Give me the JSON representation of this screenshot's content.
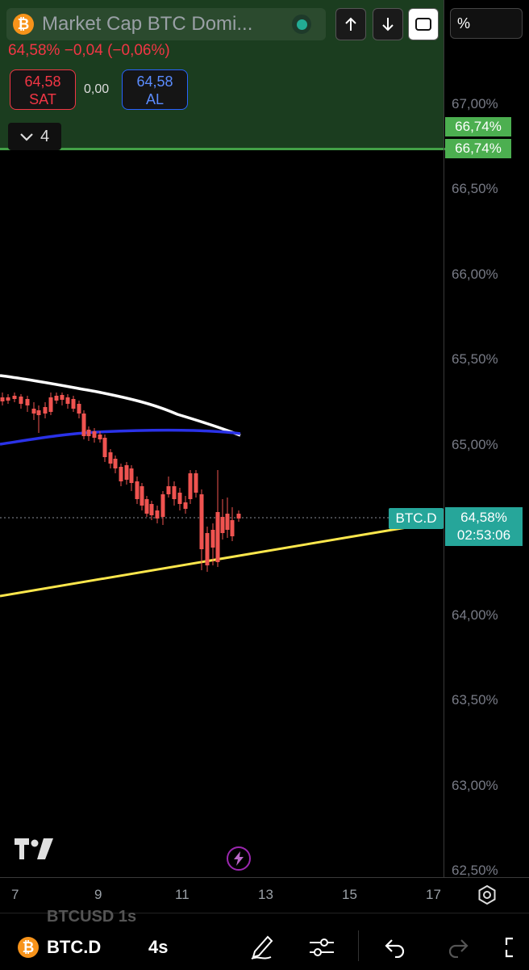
{
  "header": {
    "title": "Market Cap BTC Domi...",
    "price_change": "64,58%  −0,04 (−0,06%)",
    "sell_price": "64,58",
    "sell_label": "SAT",
    "spread": "0,00",
    "buy_price": "64,58",
    "buy_label": "AL",
    "collapse_count": "4",
    "percent_label": "%",
    "logo_letter": "₿"
  },
  "price_axis": {
    "ticks": [
      "67,00%",
      "66,50%",
      "66,00%",
      "65,50%",
      "65,00%",
      "64,00%",
      "63,50%",
      "63,00%",
      "62,50%"
    ],
    "alert_tag_1": "66,74%",
    "alert_tag_2": "66,74%",
    "current_price": "64,58%",
    "countdown": "02:53:06",
    "symbol_tag": "BTC.D"
  },
  "time_axis": {
    "labels": [
      "7",
      "9",
      "11",
      "13",
      "15",
      "17"
    ]
  },
  "toolbar": {
    "ghost_symbol": "BTCUSD  1s",
    "symbol": "BTC.D",
    "timeframe": "4s"
  },
  "colors": {
    "up": "#26a69a",
    "down": "#ef5350",
    "ma_white": "#ffffff",
    "ma_blue": "#2a32e8",
    "trendline": "#fde74c"
  }
}
